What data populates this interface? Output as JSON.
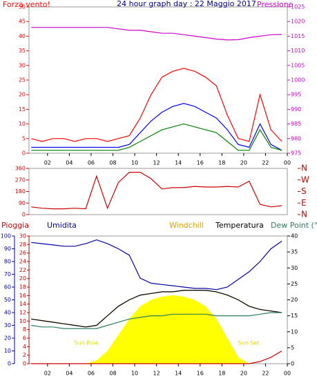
{
  "chart_data": [
    {
      "type": "line",
      "title": "24 hour graph day : 22 Maggio 2017",
      "y_label": "Forza vento!",
      "y2_label": "Pressione",
      "x": [
        0.5,
        1.5,
        2.5,
        3.5,
        4.5,
        5.5,
        6.5,
        7.5,
        8.5,
        9.5,
        10.5,
        11.5,
        12.5,
        13.5,
        14.5,
        15.5,
        16.5,
        17.5,
        18.5,
        19.5,
        20.5,
        21.5,
        22.5,
        23.5
      ],
      "xlim": [
        0.3,
        24
      ],
      "xticks": [
        {
          "value": 2,
          "label": "02"
        },
        {
          "value": 4,
          "label": "04"
        },
        {
          "value": 6,
          "label": "06"
        },
        {
          "value": 8,
          "label": "08"
        },
        10,
        12,
        14,
        16,
        18,
        20,
        22,
        {
          "value": 24,
          "label": "00"
        }
      ],
      "ylim": [
        0,
        50
      ],
      "yticks": [
        0,
        5,
        10,
        15,
        20,
        25,
        30,
        35,
        40,
        45,
        50
      ],
      "y2lim": [
        975,
        1025
      ],
      "y2ticks": [
        975,
        980,
        985,
        990,
        995,
        1000,
        1005,
        1010,
        1015,
        1020,
        1025
      ],
      "axis_colors": {
        "y": "#ff0000",
        "y2": "#cc00cc"
      },
      "series": [
        {
          "color": "#ff0000",
          "values": [
            5,
            4,
            5,
            5,
            4,
            5,
            5,
            4,
            5,
            6,
            12,
            20,
            26,
            28,
            29,
            28,
            26,
            23,
            13,
            5,
            4,
            20,
            8,
            4
          ]
        },
        {
          "color": "#0000ff",
          "values": [
            2,
            2,
            2,
            2,
            2,
            2,
            2,
            2,
            2,
            3,
            7,
            11,
            14,
            16,
            17,
            16,
            14,
            12,
            8,
            3,
            2,
            10,
            3,
            1
          ]
        },
        {
          "color": "#008000",
          "values": [
            1,
            1,
            1,
            1,
            1,
            1,
            1,
            1,
            1,
            2,
            4,
            6,
            8,
            9,
            10,
            9,
            8,
            7,
            4,
            1,
            1,
            8,
            2,
            1
          ]
        },
        {
          "color": "#cc00cc",
          "axis": "y2",
          "values": [
            1018,
            1018,
            1018,
            1018,
            1018,
            1018,
            1018,
            1018,
            1017.5,
            1017,
            1017,
            1016.5,
            1016,
            1016,
            1015.5,
            1015,
            1014.5,
            1014,
            1013.7,
            1013.8,
            1014.5,
            1015,
            1015.5,
            1015.6
          ]
        }
      ]
    },
    {
      "type": "line",
      "x": [
        0.5,
        1.5,
        2.5,
        3.5,
        4.5,
        5.5,
        6.5,
        7.5,
        8.5,
        9.5,
        10.5,
        11.5,
        12.5,
        13.5,
        14.5,
        15.5,
        16.5,
        17.5,
        18.5,
        19.5,
        20.5,
        21.5,
        22.5,
        23.5
      ],
      "xlim": [
        0.3,
        24
      ],
      "ylim": [
        0,
        360
      ],
      "yticks": [
        0,
        90,
        180,
        270,
        360
      ],
      "y2lim": [
        0,
        360
      ],
      "y2ticks": [
        {
          "value": 0,
          "label": "N"
        },
        {
          "value": 90,
          "label": "E"
        },
        {
          "value": 180,
          "label": "S"
        },
        {
          "value": 270,
          "label": "W"
        },
        {
          "value": 360,
          "label": "N"
        }
      ],
      "axis_colors": {
        "y": "#cc0000",
        "y2": "#cc0000"
      },
      "series": [
        {
          "color": "#cc0000",
          "values": [
            60,
            50,
            45,
            45,
            50,
            45,
            300,
            50,
            250,
            330,
            330,
            280,
            200,
            210,
            210,
            220,
            215,
            215,
            220,
            215,
            260,
            80,
            60,
            70
          ]
        }
      ]
    },
    {
      "type": "line",
      "x": [
        0.5,
        1.5,
        2.5,
        3.5,
        4.5,
        5.5,
        6.5,
        7.5,
        8.5,
        9.5,
        10.5,
        11.5,
        12.5,
        13.5,
        14.5,
        15.5,
        16.5,
        17.5,
        18.5,
        19.5,
        20.5,
        21.5,
        22.5,
        23.5
      ],
      "xlim": [
        0.3,
        24
      ],
      "xticks": [
        {
          "value": 2,
          "label": "02"
        },
        {
          "value": 4,
          "label": "04"
        },
        {
          "value": 6,
          "label": "06"
        },
        {
          "value": 8,
          "label": "08"
        },
        10,
        12,
        14,
        16,
        18,
        20,
        22,
        {
          "value": 24,
          "label": "00"
        }
      ],
      "ylim": [
        0,
        100
      ],
      "yticks": [
        0,
        10,
        20,
        30,
        40,
        50,
        60,
        70,
        80,
        90,
        100
      ],
      "y2lim": [
        0,
        40
      ],
      "y2ticks": [
        0,
        5,
        10,
        15,
        20,
        25,
        30,
        35,
        40
      ],
      "y3lim": [
        0,
        30
      ],
      "y3ticks": [
        0,
        2,
        4,
        6,
        8,
        10,
        12,
        14,
        16,
        18,
        20,
        22,
        24,
        26,
        28,
        30
      ],
      "axis_colors": {
        "y": "#0000a0",
        "y2": "#000000",
        "y3": "#cc0000"
      },
      "annotations": [
        "Sun Rise",
        "Sun Set"
      ],
      "series": [
        {
          "color": "#ffff00",
          "axis": "y2",
          "area": true,
          "values": [
            0,
            0,
            0,
            0,
            0,
            0,
            1,
            4,
            9,
            14,
            18,
            20,
            21,
            21.5,
            21,
            20,
            18,
            14,
            8,
            2,
            0,
            0,
            0,
            0
          ]
        },
        {
          "name": "Windchill",
          "color": "#e0a000",
          "axis": "y2",
          "values": [
            14,
            13.5,
            13,
            12.5,
            12,
            11.5,
            12,
            15,
            18,
            20,
            21.5,
            22,
            22.5,
            22.5,
            23,
            23,
            23,
            22.5,
            21.5,
            20,
            18,
            17,
            16.5,
            16
          ]
        },
        {
          "name": "Temperatura",
          "color": "#000000",
          "axis": "y2",
          "values": [
            14,
            13.5,
            13,
            12.5,
            12,
            11.5,
            12,
            15,
            18,
            20,
            21.5,
            22,
            22.5,
            22.5,
            23,
            23,
            23,
            22.5,
            21.5,
            20,
            18,
            17,
            16.5,
            16
          ]
        },
        {
          "name": "Dew Point (°C",
          "color": "#2e7d5b",
          "axis": "y2",
          "values": [
            12,
            11.5,
            11.5,
            11,
            11,
            11,
            11,
            12,
            13,
            14,
            14.5,
            15,
            15,
            15.5,
            15.5,
            15.5,
            15.5,
            15,
            15,
            15,
            15,
            15.5,
            16,
            16
          ]
        },
        {
          "name": "Umidita",
          "color": "#0000a0",
          "values": [
            95,
            94,
            93,
            92,
            92,
            94,
            97,
            94,
            90,
            85,
            67,
            63,
            62,
            61,
            60,
            59,
            59,
            58,
            60,
            66,
            72,
            80,
            90,
            96
          ]
        },
        {
          "name": "Pioggia",
          "color": "#cc0000",
          "axis": "y3",
          "values": [
            0,
            0,
            0,
            0,
            0,
            0,
            0,
            0,
            0,
            0,
            0,
            0,
            0,
            0,
            0,
            0,
            0,
            0,
            0,
            0,
            0,
            0.5,
            1.5,
            3
          ]
        }
      ]
    }
  ]
}
